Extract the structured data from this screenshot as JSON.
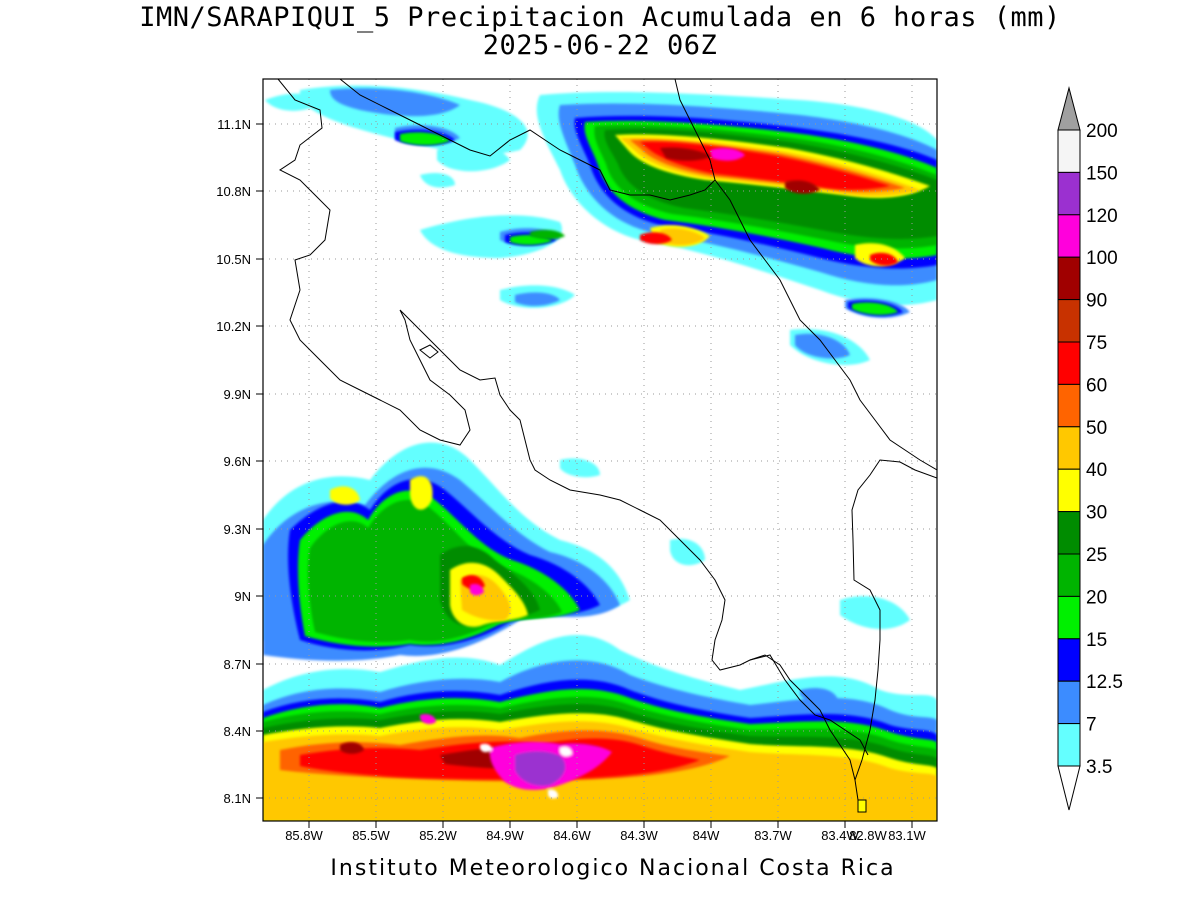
{
  "title": {
    "line1": "IMN/SARAPIQUI_5 Precipitacion Acumulada en 6 horas (mm)",
    "line2": "2025-06-22 06Z"
  },
  "footer": "Instituto Meteorologico Nacional Costa Rica",
  "map": {
    "lat_labels": [
      "11.1N",
      "10.8N",
      "10.5N",
      "10.2N",
      "9.9N",
      "9.6N",
      "9.3N",
      "9N",
      "8.7N",
      "8.4N",
      "8.1N"
    ],
    "lon_labels": [
      "85.8W",
      "85.5W",
      "85.2W",
      "84.9W",
      "84.6W",
      "84.3W",
      "84W",
      "83.7W",
      "83.4W",
      "83.1W",
      "82.8W"
    ]
  },
  "colorbar": {
    "labels": [
      "200",
      "150",
      "120",
      "100",
      "90",
      "75",
      "60",
      "50",
      "40",
      "30",
      "25",
      "20",
      "15",
      "12.5",
      "7",
      "3.5"
    ],
    "colors": [
      "#a0a0a0",
      "#f5f5f5",
      "#9b30d0",
      "#ff00dc",
      "#a00000",
      "#c83200",
      "#ff0000",
      "#ff6400",
      "#ffc800",
      "#ffff00",
      "#008c00",
      "#00b400",
      "#00f000",
      "#0000ff",
      "#3c8cff",
      "#64ffff",
      "#ffffff"
    ]
  }
}
